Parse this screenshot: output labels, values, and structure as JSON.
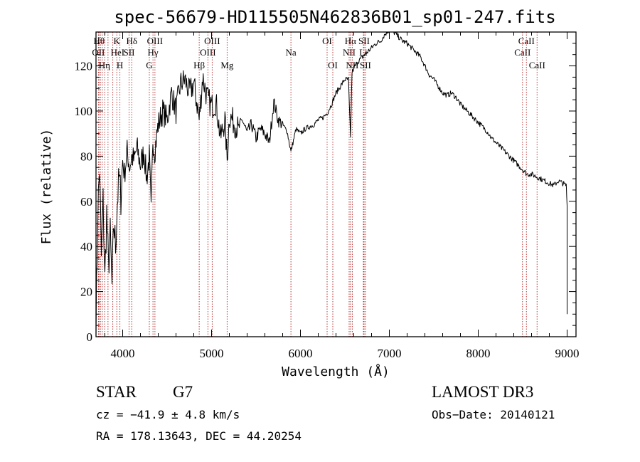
{
  "chart_data": {
    "type": "line",
    "title": "spec-56679-HD115505N462836B01_sp01-247.fits",
    "xlabel": "Wavelength (Å)",
    "ylabel": "Flux (relative)",
    "xlim": [
      3700,
      9100
    ],
    "ylim": [
      0,
      135
    ],
    "x_ticks": [
      4000,
      5000,
      6000,
      7000,
      8000,
      9000
    ],
    "y_ticks": [
      0,
      20,
      40,
      60,
      80,
      100,
      120
    ],
    "grid": false,
    "line_color": "#000000",
    "marker_color": "#b22222",
    "series": [
      {
        "x": [
          3700,
          3720,
          3740,
          3760,
          3780,
          3800,
          3820,
          3840,
          3860,
          3880,
          3900,
          3920,
          3940,
          3960,
          3980,
          4000,
          4020,
          4050,
          4080,
          4100,
          4130,
          4160,
          4200,
          4240,
          4270,
          4300,
          4320,
          4340,
          4360,
          4400,
          4450,
          4500,
          4550,
          4600,
          4650,
          4700,
          4750,
          4800,
          4850,
          4861,
          4900,
          4950,
          5000,
          5050,
          5100,
          5150,
          5175,
          5200,
          5250,
          5300,
          5350,
          5400,
          5450,
          5500,
          5550,
          5600,
          5650,
          5700,
          5750,
          5800,
          5850,
          5893,
          5950,
          6000,
          6050,
          6100,
          6150,
          6200,
          6250,
          6300,
          6350,
          6400,
          6450,
          6500,
          6540,
          6563,
          6580,
          6600,
          6650,
          6700,
          6750,
          6800,
          6850,
          6900,
          6950,
          7000,
          7050,
          7100,
          7150,
          7200,
          7250,
          7300,
          7350,
          7400,
          7450,
          7500,
          7550,
          7600,
          7650,
          7700,
          7750,
          7800,
          7850,
          7900,
          7950,
          8000,
          8050,
          8100,
          8150,
          8200,
          8250,
          8300,
          8350,
          8400,
          8450,
          8500,
          8550,
          8600,
          8650,
          8700,
          8750,
          8800,
          8850,
          8900,
          8950,
          8990,
          9000
        ],
        "y": [
          2,
          55,
          75,
          35,
          60,
          25,
          55,
          30,
          45,
          22,
          50,
          40,
          60,
          70,
          62,
          78,
          72,
          82,
          75,
          80,
          78,
          84,
          76,
          82,
          70,
          80,
          55,
          88,
          82,
          94,
          100,
          96,
          108,
          100,
          112,
          114,
          108,
          112,
          100,
          96,
          115,
          106,
          102,
          104,
          88,
          96,
          78,
          98,
          95,
          92,
          96,
          90,
          94,
          88,
          92,
          90,
          86,
          104,
          96,
          94,
          91,
          82,
          92,
          90,
          92,
          93,
          94,
          96,
          97,
          99,
          103,
          108,
          111,
          114,
          114,
          88,
          117,
          119,
          122,
          124,
          126,
          128,
          130,
          131,
          134,
          136,
          135,
          133,
          131,
          130,
          128,
          126,
          124,
          120,
          116,
          114,
          111,
          108,
          107,
          108,
          106,
          103,
          101,
          99,
          97,
          95,
          93,
          91,
          88,
          86,
          84,
          82,
          80,
          78,
          76,
          74,
          72,
          72,
          71,
          70,
          69,
          68,
          67,
          69,
          68,
          67,
          58
        ]
      }
    ],
    "lines": [
      {
        "x": 3734,
        "label": "Hθ",
        "row": 1,
        "pos": "c"
      },
      {
        "x": 3727,
        "label": "OII",
        "row": 2,
        "pos": "c"
      },
      {
        "x": 3750,
        "label": "",
        "row": 0,
        "pos": "c"
      },
      {
        "x": 3771,
        "label": "",
        "row": 0,
        "pos": "c"
      },
      {
        "x": 3798,
        "label": "",
        "row": 0,
        "pos": "c"
      },
      {
        "x": 3835,
        "label": "Hη",
        "row": 3,
        "pos": "l"
      },
      {
        "x": 3889,
        "label": "HeI",
        "row": 2,
        "pos": "r"
      },
      {
        "x": 3934,
        "label": "K",
        "row": 1,
        "pos": "c"
      },
      {
        "x": 3969,
        "label": "H",
        "row": 3,
        "pos": "c"
      },
      {
        "x": 4072,
        "label": "SII",
        "row": 2,
        "pos": "c"
      },
      {
        "x": 4102,
        "label": "Hδ",
        "row": 1,
        "pos": "c"
      },
      {
        "x": 4300,
        "label": "G",
        "row": 3,
        "pos": "c"
      },
      {
        "x": 4341,
        "label": "Hγ",
        "row": 2,
        "pos": "c"
      },
      {
        "x": 4363,
        "label": "OIII",
        "row": 1,
        "pos": "c"
      },
      {
        "x": 4861,
        "label": "Hβ",
        "row": 3,
        "pos": "c"
      },
      {
        "x": 4959,
        "label": "OIII",
        "row": 2,
        "pos": "c"
      },
      {
        "x": 5007,
        "label": "OIII",
        "row": 1,
        "pos": "c"
      },
      {
        "x": 5175,
        "label": "Mg",
        "row": 3,
        "pos": "c"
      },
      {
        "x": 5893,
        "label": "Na",
        "row": 2,
        "pos": "c"
      },
      {
        "x": 6300,
        "label": "OI",
        "row": 1,
        "pos": "c"
      },
      {
        "x": 6364,
        "label": "OI",
        "row": 3,
        "pos": "c"
      },
      {
        "x": 6548,
        "label": "NII",
        "row": 2,
        "pos": "c"
      },
      {
        "x": 6563,
        "label": "Hα",
        "row": 1,
        "pos": "c"
      },
      {
        "x": 6583,
        "label": "NII",
        "row": 3,
        "pos": "c"
      },
      {
        "x": 6708,
        "label": "Li",
        "row": 2,
        "pos": "c"
      },
      {
        "x": 6716,
        "label": "SII",
        "row": 1,
        "pos": "c"
      },
      {
        "x": 6731,
        "label": "SII",
        "row": 3,
        "pos": "c"
      },
      {
        "x": 8498,
        "label": "CaII",
        "row": 2,
        "pos": "c"
      },
      {
        "x": 8542,
        "label": "CaII",
        "row": 1,
        "pos": "c"
      },
      {
        "x": 8662,
        "label": "CaII",
        "row": 3,
        "pos": "c"
      }
    ]
  },
  "info": {
    "class": "STAR",
    "subclass": "G7",
    "survey": "LAMOST DR3",
    "cz": "cz = −41.9 ± 4.8 km/s",
    "obs_date": "Obs−Date: 20140121",
    "coords": "RA = 178.13643, DEC =  44.20254"
  }
}
